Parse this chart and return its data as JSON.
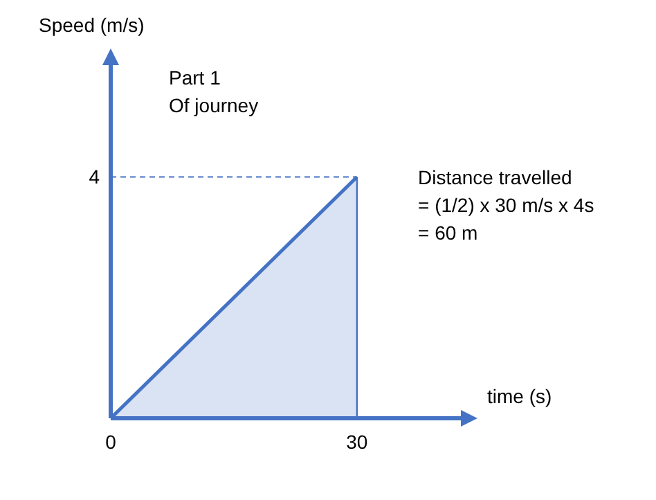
{
  "chart_data": {
    "type": "area",
    "xlabel": "time (s)",
    "ylabel": "Speed (m/s)",
    "annotations": [
      "Part 1\nOf journey",
      "Distance travelled\n= (1/2) x 30 m/s x 4s\n= 60 m"
    ],
    "x": [
      0,
      30
    ],
    "series": [
      {
        "color": "#4472c4",
        "values": [
          0,
          4
        ]
      }
    ],
    "xlim": [
      0,
      43
    ],
    "ylim": [
      0,
      5.9
    ],
    "xticks": [
      0,
      30
    ],
    "yticks": [
      4
    ],
    "ref_lines": [
      {
        "axis": "y",
        "value": 4,
        "color": "#4472c4",
        "line_style": "dashed"
      },
      {
        "axis": "x",
        "value": 30,
        "color": "#4472c4",
        "line_style": "solid"
      }
    ]
  }
}
